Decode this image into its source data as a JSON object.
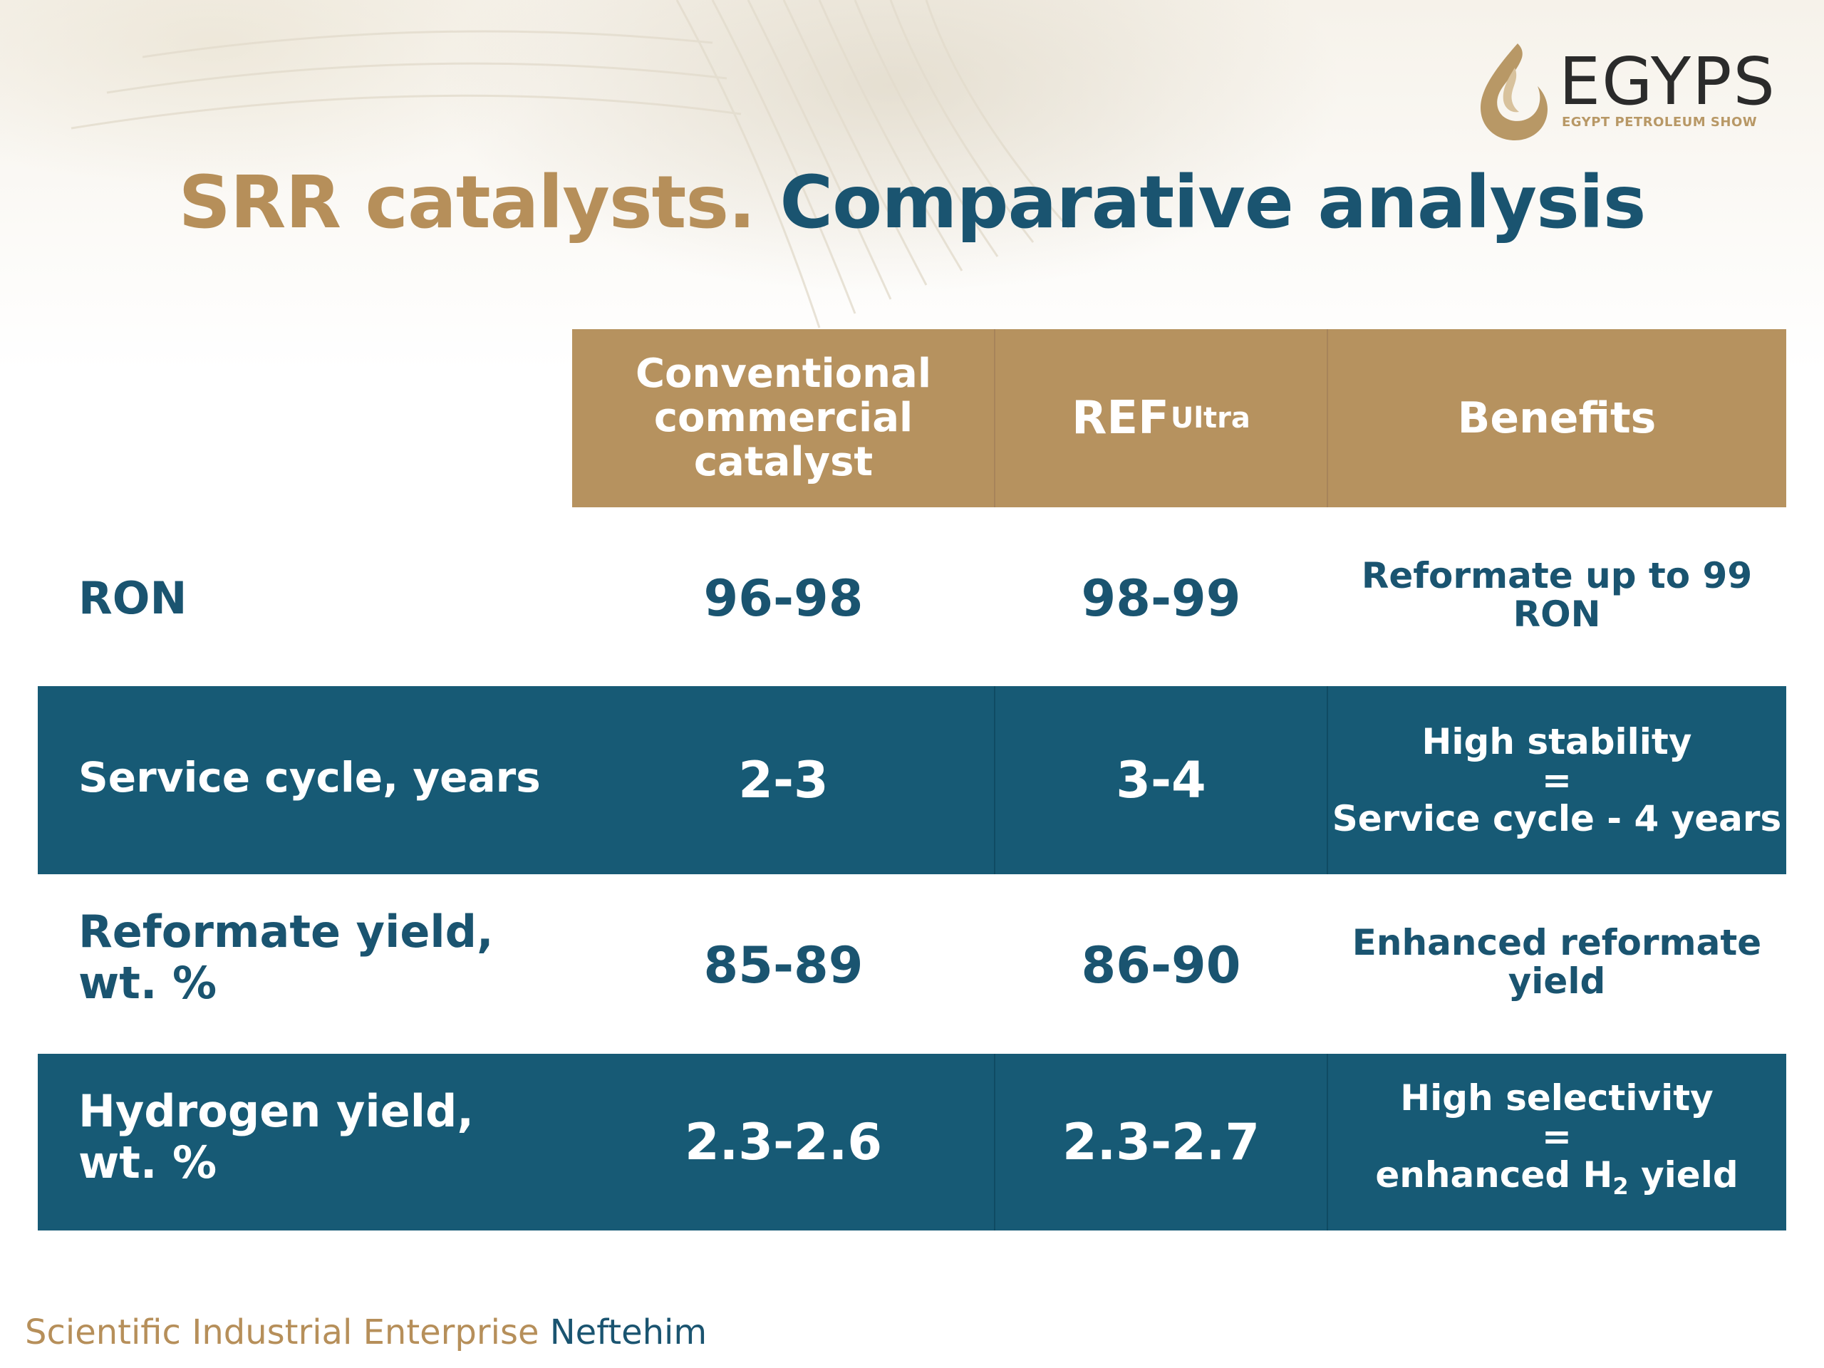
{
  "logo": {
    "name": "EGYPS",
    "subtitle": "EGYPT PETROLEUM SHOW",
    "colors": {
      "mark": "#b89866",
      "word": "#2b2b2b"
    }
  },
  "title": {
    "part1": "SRR catalysts.",
    "part2": "Comparative analysis"
  },
  "table": {
    "headers": {
      "conventional_line1": "Conventional",
      "conventional_line2": "commercial catalyst",
      "ref_base": "REF",
      "ref_sup": "Ultra",
      "benefits": "Benefits"
    },
    "rows": [
      {
        "label_line1": "RON",
        "conventional": "96-98",
        "ref": "98-99",
        "benefit_lines": [
          "Reformate up to 99 RON"
        ]
      },
      {
        "label_line1": "Service cycle, years",
        "conventional": "2-3",
        "ref": "3-4",
        "benefit_lines": [
          "High stability",
          "=",
          "Service cycle - 4 years"
        ]
      },
      {
        "label_line1": "Reformate yield,",
        "label_line2": "wt. %",
        "conventional": "85-89",
        "ref": "86-90",
        "benefit_lines": [
          "Enhanced reformate",
          "yield"
        ]
      },
      {
        "label_line1": "Hydrogen yield,",
        "label_line2": "wt. %",
        "conventional": "2.3-2.6",
        "ref": "2.3-2.7",
        "benefit_lines": [
          "High selectivity",
          "="
        ],
        "benefit_last_pre": "enhanced H",
        "benefit_last_sub": "2",
        "benefit_last_post": " yield"
      }
    ]
  },
  "footer": {
    "part1": "Scientific Industrial Enterprise",
    "part2": "Neftehim"
  },
  "colors": {
    "gold": "#b6925f",
    "teal": "#175a75",
    "title_gold": "#b68f5a",
    "title_teal": "#1a5470"
  }
}
